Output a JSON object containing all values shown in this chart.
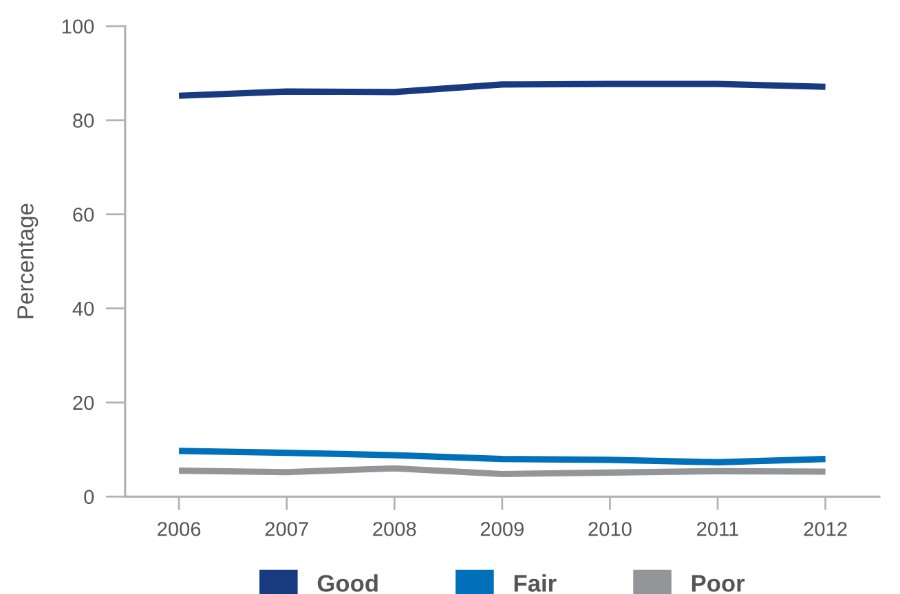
{
  "chart_data": {
    "type": "line",
    "ylabel": "Percentage",
    "categories": [
      "2006",
      "2007",
      "2008",
      "2009",
      "2010",
      "2011",
      "2012"
    ],
    "series": [
      {
        "name": "Good",
        "color": "#173a80",
        "values": [
          85.2,
          86.1,
          86.0,
          87.6,
          87.7,
          87.7,
          87.1
        ]
      },
      {
        "name": "Fair",
        "color": "#0070bb",
        "values": [
          9.7,
          9.3,
          8.8,
          8.0,
          7.8,
          7.3,
          8.0
        ]
      },
      {
        "name": "Poor",
        "color": "#939598",
        "values": [
          5.5,
          5.2,
          6.0,
          4.8,
          5.1,
          5.4,
          5.3
        ]
      }
    ],
    "ylim": [
      0,
      100
    ],
    "yticks": [
      0,
      20,
      40,
      60,
      80,
      100
    ],
    "legend": "bottom",
    "line_style": "solid"
  }
}
